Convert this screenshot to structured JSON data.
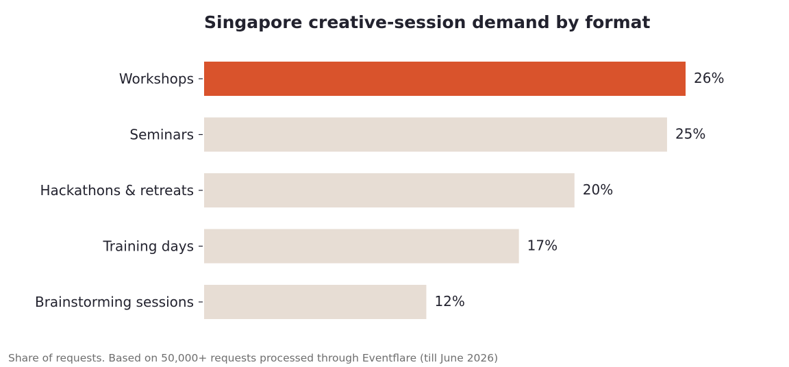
{
  "chart_data": {
    "type": "bar",
    "orientation": "horizontal",
    "title": "Singapore creative-session demand by format",
    "footnote": "Share of requests. Based on 50,000+ requests processed through Eventflare (till June 2026)",
    "categories": [
      "Workshops",
      "Seminars",
      "Hackathons & retreats",
      "Training days",
      "Brainstorming sessions"
    ],
    "values": [
      26,
      25,
      20,
      17,
      12
    ],
    "value_labels": [
      "26%",
      "25%",
      "20%",
      "17%",
      "12%"
    ],
    "unit": "%",
    "highlight_index": 0,
    "colors": {
      "highlight": "#d9532c",
      "default": "#e7ddd4",
      "text": "#22222e",
      "footnote": "#6e6e6e"
    },
    "xlim": [
      0,
      26
    ],
    "grid": false,
    "legend": "none"
  }
}
